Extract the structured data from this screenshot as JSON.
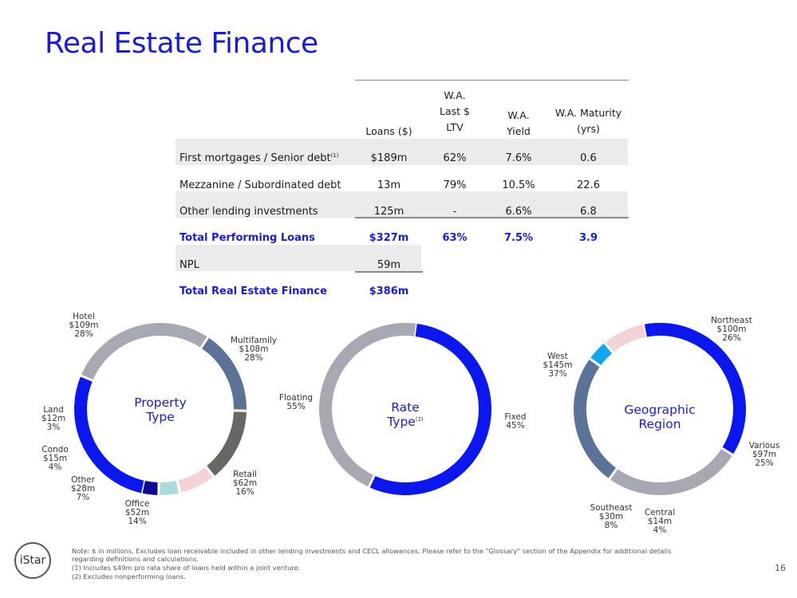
{
  "title": "Real Estate Finance",
  "table": {
    "headers": {
      "loans": "Loans ($)",
      "ltv_l1": "W.A.",
      "ltv_l2": "Last $",
      "ltv_l3": "LTV",
      "yield_l1": "W.A.",
      "yield_l2": "Yield",
      "maturity_l1": "W.A. Maturity",
      "maturity_l2": "(yrs)"
    },
    "rows": [
      {
        "label": "First mortgages / Senior debt",
        "footnote": "(1)",
        "loans": "$189m",
        "ltv": "62%",
        "yield": "7.6%",
        "maturity": "0.6"
      },
      {
        "label": "Mezzanine / Subordinated debt",
        "loans": "13m",
        "ltv": "79%",
        "yield": "10.5%",
        "maturity": "22.6"
      },
      {
        "label": "Other lending investments",
        "loans": "125m",
        "ltv": "-",
        "yield": "6.6%",
        "maturity": "6.8"
      }
    ],
    "total_performing": {
      "label": "Total Performing Loans",
      "loans": "$327m",
      "ltv": "63%",
      "yield": "7.5%",
      "maturity": "3.9"
    },
    "npl": {
      "label": "NPL",
      "loans": "59m"
    },
    "total": {
      "label": "Total Real Estate Finance",
      "loans": "$386m"
    }
  },
  "charts": [
    {
      "center_line1": "Property",
      "center_line2": "Type",
      "center_sup": "",
      "segments": [
        {
          "name": "Hotel",
          "amount": "$109m",
          "pct": "28%",
          "value": 28,
          "color": "#0a17ee"
        },
        {
          "name": "Multifamily",
          "amount": "$108m",
          "pct": "28%",
          "value": 28,
          "color": "#a8a8b3"
        },
        {
          "name": "Retail",
          "amount": "$62m",
          "pct": "16%",
          "value": 16,
          "color": "#5b7397"
        },
        {
          "name": "Office",
          "amount": "$52m",
          "pct": "14%",
          "value": 14,
          "color": "#676764"
        },
        {
          "name": "Other",
          "amount": "$28m",
          "pct": "7%",
          "value": 7,
          "color": "#f4d3d7"
        },
        {
          "name": "Condo",
          "amount": "$15m",
          "pct": "4%",
          "value": 4,
          "color": "#abdcdb"
        },
        {
          "name": "Land",
          "amount": "$12m",
          "pct": "3%",
          "value": 3,
          "color": "#0a0a96"
        }
      ]
    },
    {
      "center_line1": "Rate",
      "center_line2": "Type",
      "center_sup": "(2)",
      "segments": [
        {
          "name": "Floating",
          "amount": "",
          "pct": "55%",
          "value": 55,
          "color": "#0a17ee"
        },
        {
          "name": "Fixed",
          "amount": "",
          "pct": "45%",
          "value": 45,
          "color": "#a8a8b3"
        }
      ]
    },
    {
      "center_line1": "Geographic",
      "center_line2": "Region",
      "center_sup": "",
      "segments": [
        {
          "name": "West",
          "amount": "$145m",
          "pct": "37%",
          "value": 37,
          "color": "#0a17ee"
        },
        {
          "name": "Northeast",
          "amount": "$100m",
          "pct": "26%",
          "value": 26,
          "color": "#a8a8b3"
        },
        {
          "name": "Various",
          "amount": "$97m",
          "pct": "25%",
          "value": 25,
          "color": "#5b7397"
        },
        {
          "name": "Central",
          "amount": "$14m",
          "pct": "4%",
          "value": 4,
          "color": "#11a7ee"
        },
        {
          "name": "Southeast",
          "amount": "$30m",
          "pct": "8%",
          "value": 8,
          "color": "#f4d3d7"
        }
      ]
    }
  ],
  "footer": {
    "logo": "iStar",
    "note1": "Note: $ in millions. Excludes loan receivable included in other lending investments and CECL allowances. Please refer to the \"Glossary\" section of the Appendix for additional details",
    "note2": "regarding definitions and calculations.",
    "note3": "(1) Includes $49m pro rata share of loans held within a joint venture.",
    "note4": "(2) Excludes nonperforming loans.",
    "page": "16"
  }
}
